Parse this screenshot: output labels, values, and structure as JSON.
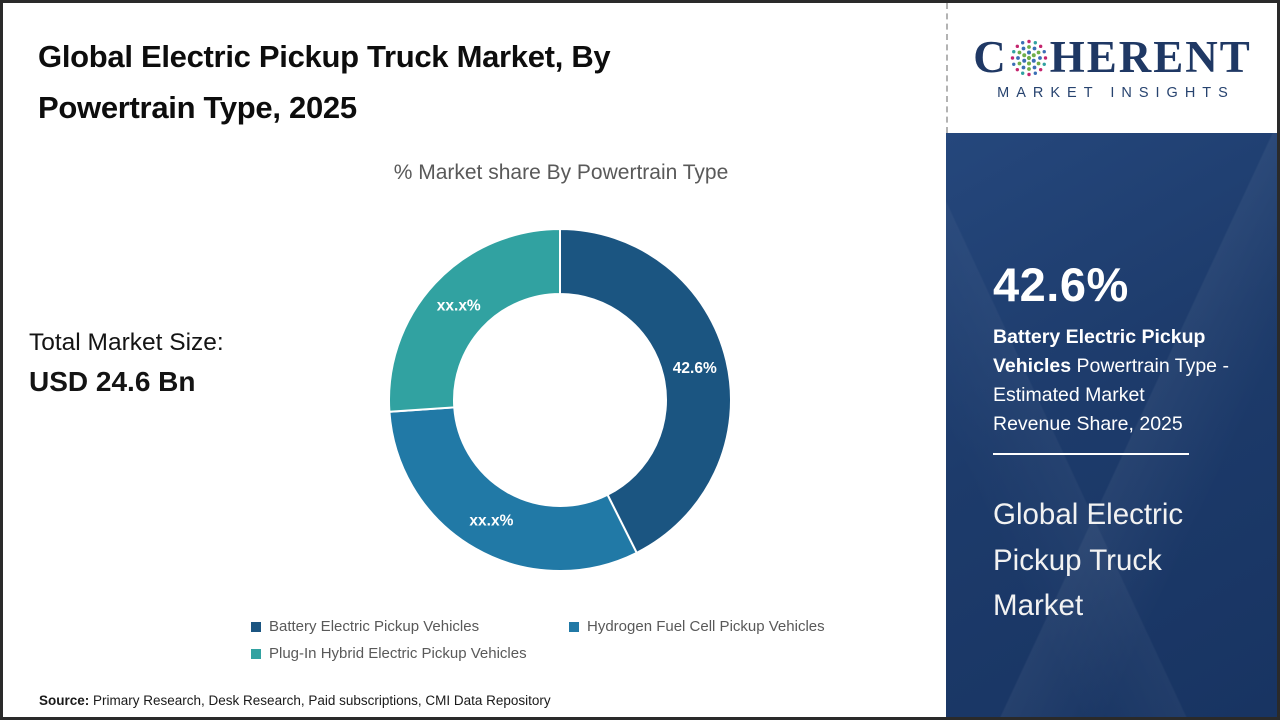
{
  "header": {
    "title_lines": [
      "Global Electric Pickup Truck Market, By",
      "Powertrain Type, 2025"
    ]
  },
  "main": {
    "chart_title": "% Market share By Powertrain Type",
    "total_market": {
      "label": "Total Market Size:",
      "value": "USD 24.6 Bn"
    },
    "source": {
      "label": "Source:",
      "text": " Primary Research, Desk Research, Paid subscriptions, CMI Data Repository"
    }
  },
  "chart_data": {
    "type": "pie",
    "donut": true,
    "title": "% Market share By Powertrain Type",
    "start_angle_deg": 0,
    "legend_position": "bottom",
    "segments": [
      {
        "label": "Battery Electric Pickup Vehicles",
        "value": 42.6,
        "display": "42.6%",
        "color": "#1b5581"
      },
      {
        "label": "Hydrogen Fuel Cell Pickup Vehicles",
        "value": 31.3,
        "display": "xx.x%",
        "color": "#2179a6"
      },
      {
        "label": "Plug-In Hybrid Electric Pickup Vehicles",
        "value": 26.1,
        "display": "xx.x%",
        "color": "#31a2a1"
      }
    ]
  },
  "sidebar": {
    "logo": {
      "brand_c": "C",
      "brand_rest": "HERENT",
      "tagline": "MARKET INSIGHTS",
      "dot_colors": {
        "green": "#6fae4a",
        "blue": "#3b6fb5",
        "magenta": "#c4256e",
        "teal": "#31a2a1"
      }
    },
    "highlight": {
      "value": "42.6%",
      "lines": [
        {
          "bold": "Battery Electric Pickup",
          "regular": ""
        },
        {
          "bold": "Vehicles",
          "regular": " Powertrain Type -"
        },
        {
          "bold": "",
          "regular": "Estimated Market"
        },
        {
          "bold": "",
          "regular": "Revenue Share, 2025"
        }
      ]
    },
    "market_title_lines": [
      "Global Electric",
      "Pickup Truck",
      "Market"
    ]
  },
  "colors": {
    "sidebar_bg": "#1d3b6b",
    "title_text": "#0d0d0d",
    "muted_text": "#595959",
    "logo_navy": "#1f3864"
  }
}
